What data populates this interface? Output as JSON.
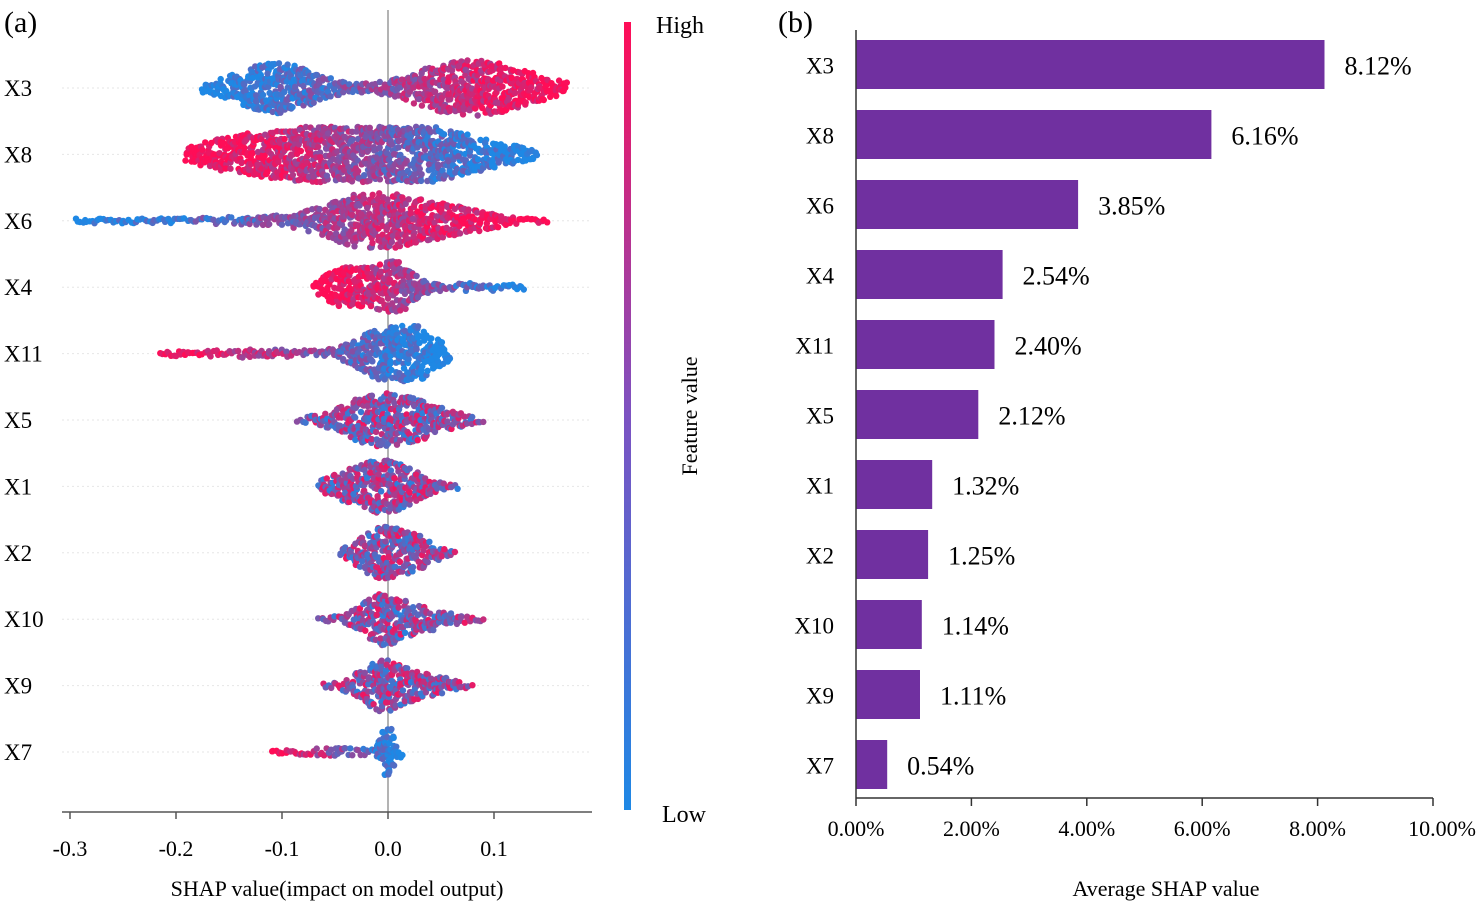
{
  "figure": {
    "colors": {
      "low": "#1e88e5",
      "high": "#ff0d57",
      "bar": "#7030a0",
      "axis": "#555555",
      "gridline": "#e6e6e6"
    }
  },
  "chart_data": [
    {
      "type": "scatter",
      "panel": "(a)",
      "features": [
        "X3",
        "X8",
        "X6",
        "X4",
        "X11",
        "X5",
        "X1",
        "X2",
        "X10",
        "X9",
        "X7"
      ],
      "xlabel": "SHAP value(impact on model output)",
      "xticks": [
        -0.3,
        -0.2,
        -0.1,
        0.0,
        0.1
      ],
      "xtick_labels": [
        "-0.3",
        "-0.2",
        "-0.1",
        "0.0",
        "0.1"
      ],
      "xlim": [
        -0.31,
        0.195
      ],
      "colorbar": {
        "label": "Feature value",
        "high": "High",
        "low": "Low"
      },
      "distributions": [
        {
          "feature": "X3",
          "min": -0.175,
          "max": 0.17,
          "modes": [
            [
              -0.105,
              1.0,
              0.035
            ],
            [
              0.065,
              0.95,
              0.04
            ],
            [
              0.12,
              0.45,
              0.035
            ]
          ],
          "high_side": "right"
        },
        {
          "feature": "X8",
          "min": -0.19,
          "max": 0.14,
          "modes": [
            [
              -0.12,
              0.8,
              0.05
            ],
            [
              0.03,
              1.0,
              0.06
            ],
            [
              -0.03,
              0.7,
              0.04
            ]
          ],
          "high_side": "left"
        },
        {
          "feature": "X6",
          "min": -0.295,
          "max": 0.15,
          "modes": [
            [
              -0.02,
              1.0,
              0.035
            ],
            [
              0.05,
              0.55,
              0.04
            ],
            [
              -0.12,
              0.12,
              0.06
            ]
          ],
          "high_side": "right"
        },
        {
          "feature": "X4",
          "min": -0.07,
          "max": 0.13,
          "modes": [
            [
              -0.04,
              0.75,
              0.018
            ],
            [
              0.005,
              1.0,
              0.018
            ],
            [
              0.08,
              0.12,
              0.03
            ]
          ],
          "high_side": "left"
        },
        {
          "feature": "X11",
          "min": -0.215,
          "max": 0.06,
          "modes": [
            [
              0.0,
              1.0,
              0.025
            ],
            [
              0.03,
              0.6,
              0.02
            ],
            [
              -0.12,
              0.12,
              0.06
            ]
          ],
          "high_side": "left"
        },
        {
          "feature": "X5",
          "min": -0.085,
          "max": 0.09,
          "modes": [
            [
              -0.01,
              1.0,
              0.03
            ],
            [
              0.04,
              0.4,
              0.025
            ]
          ],
          "high_side": "mixed"
        },
        {
          "feature": "X1",
          "min": -0.065,
          "max": 0.065,
          "modes": [
            [
              0.0,
              1.0,
              0.025
            ],
            [
              -0.04,
              0.35,
              0.02
            ]
          ],
          "high_side": "mixed"
        },
        {
          "feature": "X2",
          "min": -0.045,
          "max": 0.065,
          "modes": [
            [
              -0.005,
              1.0,
              0.02
            ],
            [
              0.03,
              0.45,
              0.015
            ]
          ],
          "high_side": "mixed"
        },
        {
          "feature": "X10",
          "min": -0.065,
          "max": 0.09,
          "modes": [
            [
              -0.005,
              1.0,
              0.02
            ],
            [
              0.04,
              0.35,
              0.02
            ]
          ],
          "high_side": "mixed"
        },
        {
          "feature": "X9",
          "min": -0.06,
          "max": 0.08,
          "modes": [
            [
              -0.005,
              1.0,
              0.02
            ],
            [
              0.04,
              0.35,
              0.02
            ]
          ],
          "high_side": "mixed"
        },
        {
          "feature": "X7",
          "min": -0.11,
          "max": 0.015,
          "modes": [
            [
              0.0,
              1.0,
              0.006
            ],
            [
              -0.05,
              0.12,
              0.03
            ]
          ],
          "high_side": "left"
        }
      ]
    },
    {
      "type": "bar",
      "panel": "(b)",
      "orientation": "horizontal",
      "categories": [
        "X3",
        "X8",
        "X6",
        "X4",
        "X11",
        "X5",
        "X1",
        "X2",
        "X10",
        "X9",
        "X7"
      ],
      "values": [
        8.12,
        6.16,
        3.85,
        2.54,
        2.4,
        2.12,
        1.32,
        1.25,
        1.14,
        1.11,
        0.54
      ],
      "value_labels": [
        "8.12%",
        "6.16%",
        "3.85%",
        "2.54%",
        "2.40%",
        "2.12%",
        "1.32%",
        "1.25%",
        "1.14%",
        "1.11%",
        "0.54%"
      ],
      "xlabel": "Average SHAP value",
      "xticks": [
        0,
        2,
        4,
        6,
        8,
        10
      ],
      "xtick_labels": [
        "0.00%",
        "2.00%",
        "4.00%",
        "6.00%",
        "8.00%",
        "10.00%"
      ],
      "xlim": [
        0,
        10
      ]
    }
  ]
}
